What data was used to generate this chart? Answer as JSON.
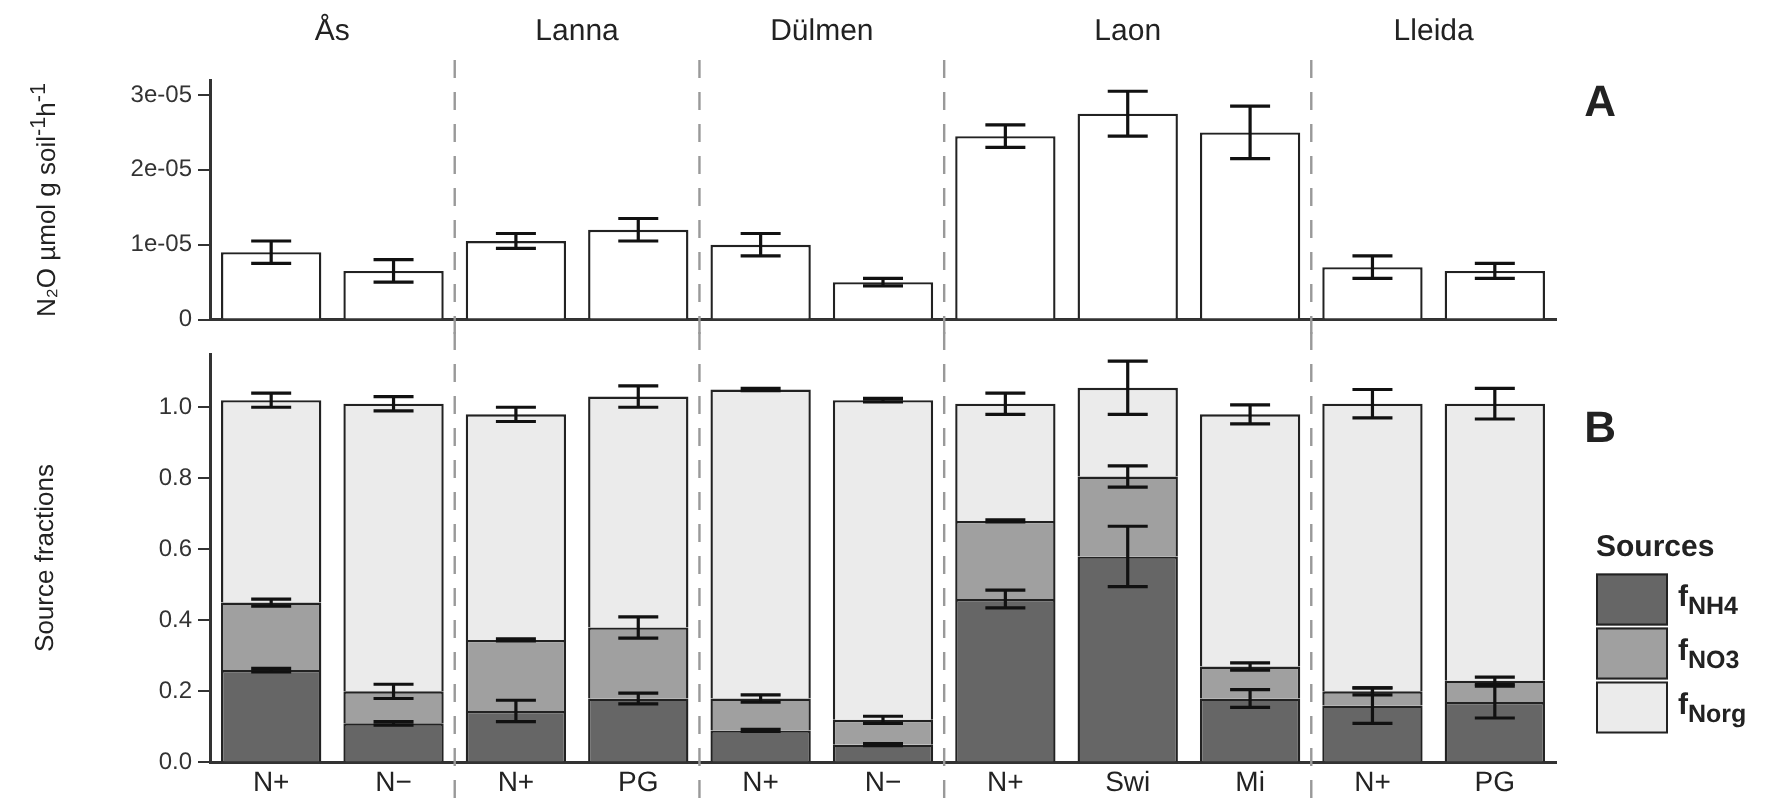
{
  "chart_data": [
    {
      "type": "bar",
      "ylabel": "N₂O µmol g soil$^{-1}$h$^{-1}$",
      "categories": [
        null,
        null,
        null,
        null,
        null,
        null,
        null,
        null,
        null,
        null,
        null
      ],
      "values": [
        9e-06,
        6.5e-06,
        1.05e-05,
        1.2e-05,
        1e-05,
        5e-06,
        2.45e-05,
        2.75e-05,
        2.5e-05,
        7e-06,
        6.5e-06
      ],
      "errors": [
        1.5e-06,
        1.5e-06,
        1e-06,
        1.5e-06,
        1.5e-06,
        5e-07,
        1.5e-06,
        3e-06,
        3.5e-06,
        1.5e-06,
        1e-06
      ],
      "color": "#ffffff",
      "ylim": [
        0,
        3.2e-05
      ],
      "yticks": [
        0,
        {
          "value": 1e-05,
          "label": "1e-05"
        },
        {
          "value": 2e-05,
          "label": "2e-05"
        },
        {
          "value": 3e-05,
          "label": "3e-05"
        }
      ],
      "tick_labels": "y",
      "grid": false,
      "annotations": [
        "Ås",
        "Lanna",
        "Dülmen",
        "Laon",
        "Lleida",
        "A"
      ]
    },
    {
      "type": "bar",
      "annotations": [
        "B"
      ],
      "ylabel": "Source fractions",
      "categories": [
        "N+",
        "N−",
        "N+",
        "PG",
        "N+",
        "N−",
        "N+",
        "Swi",
        "Mi",
        "N+",
        "PG"
      ],
      "stacked": true,
      "series": [
        {
          "name": "f$_{NH4}$",
          "color": "#666666",
          "values": [
            0.26,
            0.11,
            0.145,
            0.18,
            0.09,
            0.05,
            0.46,
            0.58,
            0.18,
            0.16,
            0.17
          ],
          "errors": [
            0.005,
            0.005,
            0.03,
            0.015,
            0.003,
            0.003,
            0.025,
            0.085,
            0.025,
            0.05,
            0.045
          ]
        },
        {
          "name": "f$_{NO3}$",
          "color": "#a0a0a0",
          "values": [
            0.19,
            0.09,
            0.2,
            0.2,
            0.09,
            0.07,
            0.22,
            0.225,
            0.09,
            0.04,
            0.06
          ],
          "errors": [
            0.01,
            0.02,
            0.003,
            0.03,
            0.01,
            0.01,
            0.003,
            0.03,
            0.01,
            0.01,
            0.01
          ]
        },
        {
          "name": "f$_{Norg}$",
          "color": "#ebebeb",
          "values": [
            0.57,
            0.81,
            0.635,
            0.65,
            0.87,
            0.9,
            0.33,
            0.25,
            0.71,
            0.81,
            0.78
          ],
          "errors": [
            0.02,
            0.02,
            0.02,
            0.03,
            0.003,
            0.005,
            0.03,
            0.075,
            0.027,
            0.04,
            0.043
          ]
        }
      ],
      "ylim": [
        0,
        1.15
      ],
      "yticks": [
        {
          "value": 0,
          "label": "0.0"
        },
        {
          "value": 0.2,
          "label": "0.2"
        },
        {
          "value": 0.4,
          "label": "0.4"
        },
        {
          "value": 0.6,
          "label": "0.6"
        },
        {
          "value": 0.8,
          "label": "0.8"
        },
        {
          "value": 1,
          "label": "1.0"
        }
      ],
      "grid": false,
      "legend": "right",
      "legend_title": "Sources"
    }
  ]
}
